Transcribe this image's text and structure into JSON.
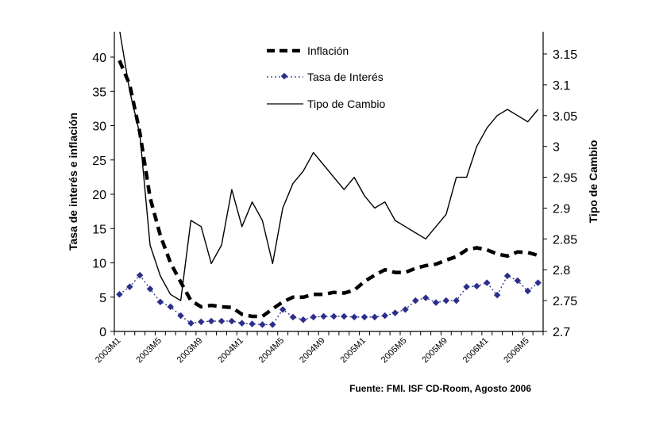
{
  "chart_data": {
    "type": "line",
    "categories": [
      "2003M1",
      "2003M2",
      "2003M3",
      "2003M4",
      "2003M5",
      "2003M6",
      "2003M7",
      "2003M8",
      "2003M9",
      "2003M10",
      "2003M11",
      "2003M12",
      "2004M1",
      "2004M2",
      "2004M3",
      "2004M4",
      "2004M5",
      "2004M6",
      "2004M7",
      "2004M8",
      "2004M9",
      "2004M10",
      "2004M11",
      "2004M12",
      "2005M1",
      "2005M2",
      "2005M3",
      "2005M4",
      "2005M5",
      "2005M6",
      "2005M7",
      "2005M8",
      "2005M9",
      "2005M10",
      "2005M11",
      "2005M12",
      "2006M1",
      "2006M2",
      "2006M3",
      "2006M4",
      "2006M5",
      "2006M6"
    ],
    "x_tick_labels": [
      "2003M1",
      "2003M5",
      "2003M9",
      "2004M1",
      "2004M5",
      "2004M9",
      "2005M1",
      "2005M5",
      "2005M9",
      "2006M1",
      "2006M5"
    ],
    "series": [
      {
        "name": "Inflación",
        "axis": "left",
        "style": "dashed-thick",
        "color": "#000000",
        "values": [
          39.5,
          36,
          29,
          19.5,
          14,
          10,
          7.2,
          4.5,
          3.6,
          3.8,
          3.6,
          3.5,
          2.5,
          2.2,
          2.2,
          3.3,
          4.3,
          5.0,
          5.0,
          5.4,
          5.4,
          5.7,
          5.6,
          6.0,
          7.3,
          8.2,
          9.0,
          8.6,
          8.6,
          9.2,
          9.6,
          9.8,
          10.4,
          10.9,
          11.9,
          12.2,
          11.9,
          11.3,
          11.0,
          11.6,
          11.5,
          11.1
        ]
      },
      {
        "name": "Tasa de Interés",
        "axis": "left",
        "style": "dotted-diamond",
        "color": "#2b2f8a",
        "values": [
          5.4,
          6.5,
          8.2,
          6.2,
          4.3,
          3.6,
          2.3,
          1.2,
          1.4,
          1.5,
          1.5,
          1.5,
          1.2,
          1.1,
          1.0,
          1.0,
          3.2,
          2.1,
          1.7,
          2.1,
          2.2,
          2.2,
          2.2,
          2.1,
          2.1,
          2.1,
          2.3,
          2.7,
          3.2,
          4.5,
          4.9,
          4.2,
          4.5,
          4.5,
          6.5,
          6.6,
          7.1,
          5.3,
          8.1,
          7.4,
          5.9,
          7.1
        ]
      },
      {
        "name": "Tipo de Cambio",
        "axis": "right",
        "style": "solid",
        "color": "#000000",
        "values": [
          3.19,
          3.09,
          3.02,
          2.84,
          2.79,
          2.76,
          2.75,
          2.88,
          2.87,
          2.81,
          2.84,
          2.93,
          2.87,
          2.91,
          2.88,
          2.81,
          2.9,
          2.94,
          2.96,
          2.99,
          2.97,
          2.95,
          2.93,
          2.95,
          2.92,
          2.9,
          2.91,
          2.88,
          2.87,
          2.86,
          2.85,
          2.87,
          2.89,
          2.95,
          2.95,
          3.0,
          3.03,
          3.05,
          3.06,
          3.05,
          3.04,
          3.06
        ]
      }
    ],
    "ylabel": "Tasa de interés e inflación",
    "ylabel_right": "Tipo de Cambio",
    "ylim": [
      0,
      43.7
    ],
    "ylim_right": [
      2.7,
      3.186
    ],
    "y_ticks": [
      "0",
      "5",
      "10",
      "15",
      "20",
      "25",
      "30",
      "35",
      "40"
    ],
    "y_ticks_right": [
      "2.7",
      "2.75",
      "2.8",
      "2.85",
      "2.9",
      "2.95",
      "3",
      "3.05",
      "3.1",
      "3.15"
    ],
    "grid": false,
    "legend_placement": "top-center",
    "source": "Fuente: FMI. ISF CD-Room, Agosto 2006"
  }
}
